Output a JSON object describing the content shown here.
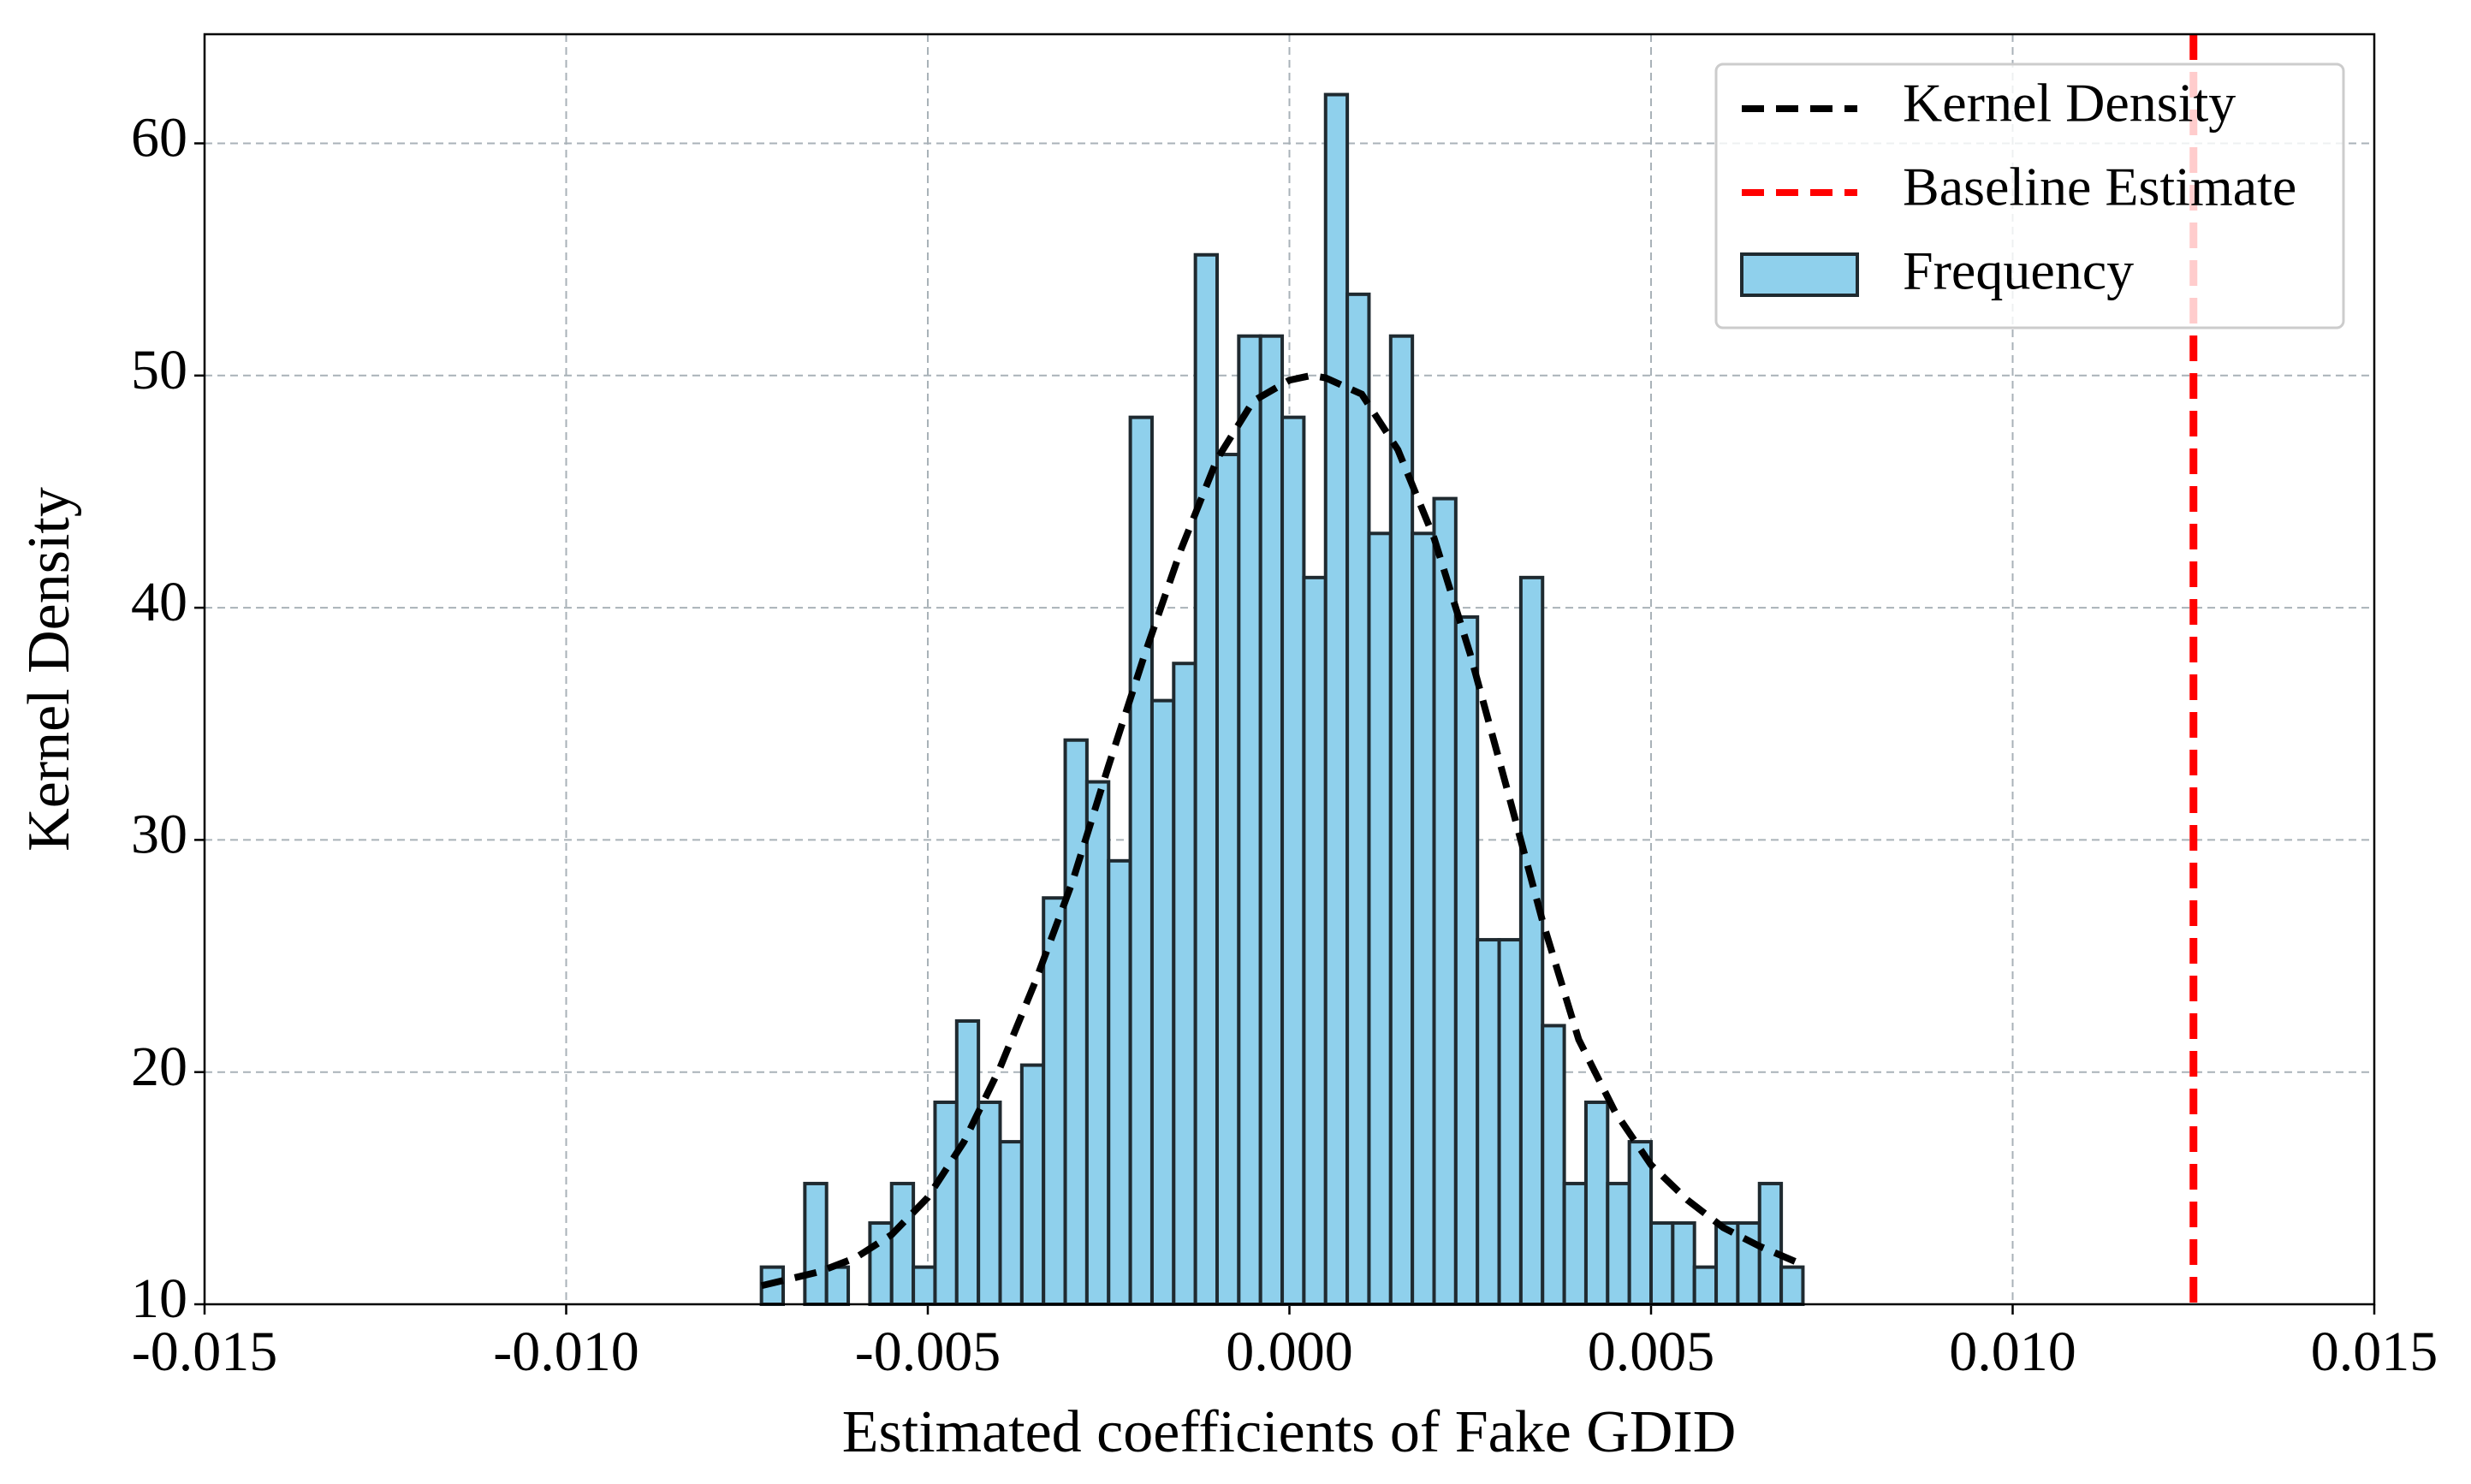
{
  "chart_data": {
    "type": "histogram",
    "xlabel": "Estimated coefficients of Fake GDID",
    "ylabel": "Kernel Density",
    "name": "Frequency",
    "color": "#8fd0ec",
    "bins": [
      -0.0073,
      -0.007,
      -0.0067,
      -0.0064,
      -0.0061,
      -0.0058,
      -0.0055,
      -0.0052,
      -0.0049,
      -0.0046,
      -0.0043,
      -0.004,
      -0.0037,
      -0.0034,
      -0.0031,
      -0.0028,
      -0.0025,
      -0.0022,
      -0.0019,
      -0.0016,
      -0.0013,
      -0.001,
      -0.0007,
      -0.0004,
      -0.0001,
      0.0002,
      0.0005,
      0.0008,
      0.0011,
      0.0014,
      0.0017,
      0.002,
      0.0023,
      0.0026,
      0.0029,
      0.0032,
      0.0035,
      0.0038,
      0.0041,
      0.0044,
      0.0047,
      0.005,
      0.0053,
      0.0056,
      0.0059,
      0.0062,
      0.0065,
      0.0068,
      0.0071
    ],
    "values": [
      11.6,
      10,
      15.2,
      11.6,
      10,
      13.5,
      15.2,
      11.6,
      18.7,
      22.2,
      18.7,
      17,
      20.3,
      27.5,
      34.3,
      32.5,
      29.1,
      48.2,
      36,
      37.6,
      55.2,
      46.6,
      51.7,
      51.7,
      48.2,
      41.3,
      62.1,
      53.5,
      43.2,
      51.7,
      43.2,
      44.7,
      39.6,
      25.7,
      25.7,
      41.3,
      22,
      15.2,
      18.7,
      15.2,
      17,
      13.5,
      13.5,
      11.6,
      13.5,
      13.5,
      15.2,
      11.6
    ],
    "kde": {
      "name": "Kernel Density",
      "color": "#000000",
      "x": [
        -0.0073,
        -0.0065,
        -0.006,
        -0.0055,
        -0.005,
        -0.0045,
        -0.004,
        -0.0035,
        -0.003,
        -0.0025,
        -0.002,
        -0.0015,
        -0.001,
        -0.0005,
        0,
        0.0003,
        0.0005,
        0.001,
        0.0015,
        0.002,
        0.0025,
        0.003,
        0.0035,
        0.004,
        0.0045,
        0.005,
        0.0055,
        0.006,
        0.0065,
        0.0071
      ],
      "values": [
        10.8,
        11.4,
        12.0,
        13.0,
        14.6,
        17.0,
        20.2,
        24.0,
        28.2,
        33.2,
        38.0,
        42.5,
        46.4,
        48.9,
        49.8,
        50.0,
        49.9,
        49.2,
        46.8,
        43.0,
        38.0,
        32.3,
        26.5,
        21.4,
        18.3,
        16.0,
        14.5,
        13.3,
        12.5,
        11.7
      ]
    },
    "baseline": {
      "name": "Baseline Estimate",
      "color": "#ff0000",
      "x": 0.0125
    },
    "xlim": [
      -0.015,
      0.015
    ],
    "xticks": [
      {
        "value": -0.015,
        "label": "-0.015"
      },
      {
        "value": -0.01,
        "label": "-0.010"
      },
      {
        "value": -0.005,
        "label": "-0.005"
      },
      {
        "value": 0,
        "label": "0.000"
      },
      {
        "value": 0.005,
        "label": "0.005"
      },
      {
        "value": 0.01,
        "label": "0.010"
      },
      {
        "value": 0.015,
        "label": "0.015"
      }
    ],
    "ylim": [
      10,
      64.7
    ],
    "yticks": [
      10,
      20,
      30,
      40,
      50,
      60
    ],
    "grid": true,
    "legend": "upper right"
  }
}
